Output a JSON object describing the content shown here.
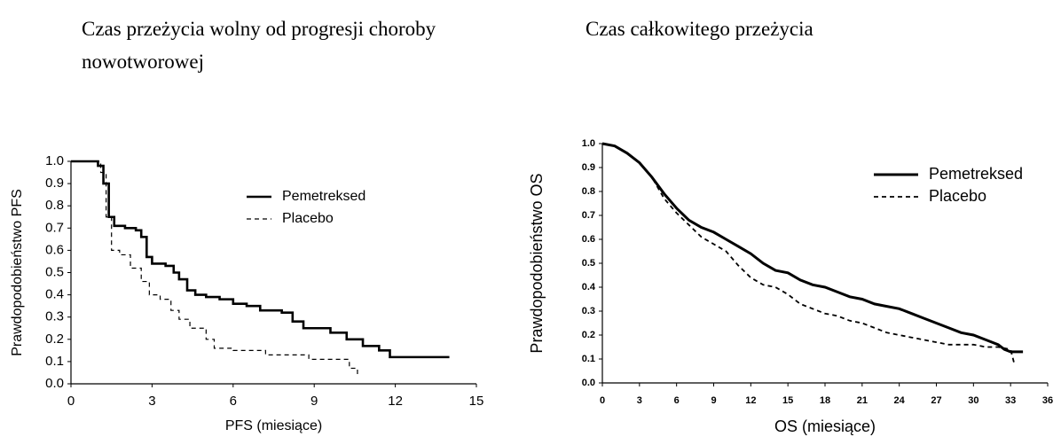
{
  "chart_data": [
    {
      "type": "line",
      "step": true,
      "title": "Czas przeżycia wolny od progresji choroby nowotworowej",
      "x_label": "PFS  (miesiące)",
      "y_label": "Prawdopodobieństwo PFS",
      "xlim": [
        0,
        15
      ],
      "xticks": [
        0,
        3,
        6,
        9,
        12,
        15
      ],
      "ylim": [
        0,
        1
      ],
      "yticks": [
        {
          "value": 0,
          "label": "0.0"
        },
        0.1,
        0.2,
        0.3,
        0.4,
        0.5,
        0.6,
        0.7,
        0.8,
        0.9,
        {
          "value": 1,
          "label": "1.0"
        }
      ],
      "legend": "upper right",
      "series": [
        {
          "name": "Pemetreksed",
          "color": "#000000",
          "style": "solid",
          "x": [
            0,
            0.8,
            1.0,
            1.2,
            1.4,
            1.6,
            2.0,
            2.4,
            2.6,
            2.8,
            3.0,
            3.5,
            3.8,
            4.0,
            4.3,
            4.6,
            5.0,
            5.5,
            6.0,
            6.5,
            7.0,
            7.8,
            8.2,
            8.6,
            9.2,
            9.6,
            10.2,
            10.8,
            11.4,
            11.8,
            14.0
          ],
          "values": [
            1.0,
            1.0,
            0.98,
            0.9,
            0.75,
            0.71,
            0.7,
            0.69,
            0.66,
            0.57,
            0.54,
            0.53,
            0.5,
            0.47,
            0.42,
            0.4,
            0.39,
            0.38,
            0.36,
            0.35,
            0.33,
            0.32,
            0.28,
            0.25,
            0.25,
            0.23,
            0.2,
            0.17,
            0.15,
            0.12,
            0.12
          ]
        },
        {
          "name": "Placebo",
          "color": "#000000",
          "style": "dashed",
          "x": [
            0,
            0.8,
            1.1,
            1.3,
            1.5,
            1.8,
            2.2,
            2.6,
            2.9,
            3.3,
            3.7,
            4.0,
            4.4,
            5.0,
            5.3,
            6.0,
            7.2,
            8.8,
            10.1,
            10.3,
            10.6,
            10.7
          ],
          "values": [
            1.0,
            1.0,
            0.95,
            0.75,
            0.6,
            0.58,
            0.52,
            0.46,
            0.4,
            0.38,
            0.33,
            0.29,
            0.25,
            0.2,
            0.16,
            0.15,
            0.13,
            0.11,
            0.11,
            0.07,
            0.04,
            0.04
          ]
        }
      ]
    },
    {
      "type": "line",
      "step": false,
      "title": "Czas całkowitego przeżycia",
      "x_label": "OS (miesiące)",
      "y_label": "Prawdopodobieństwo OS",
      "xlim": [
        0,
        36
      ],
      "xticks": [
        0,
        3,
        6,
        9,
        12,
        15,
        18,
        21,
        24,
        27,
        30,
        33,
        36
      ],
      "ylim": [
        0,
        1
      ],
      "yticks": [
        {
          "value": 0,
          "label": "0.0"
        },
        0.1,
        0.2,
        0.3,
        0.4,
        0.5,
        0.6,
        0.7,
        0.8,
        0.9,
        {
          "value": 1,
          "label": "1.0"
        }
      ],
      "legend": "upper right",
      "series": [
        {
          "name": "Pemetreksed",
          "color": "#000000",
          "style": "solid",
          "x": [
            0,
            1,
            2,
            3,
            4,
            5,
            6,
            7,
            8,
            9,
            10,
            11,
            12,
            13,
            14,
            15,
            16,
            17,
            18,
            19,
            20,
            21,
            22,
            23,
            24,
            25,
            26,
            27,
            28,
            29,
            30,
            31,
            32,
            32.5,
            33,
            34
          ],
          "values": [
            1.0,
            0.99,
            0.96,
            0.92,
            0.86,
            0.79,
            0.73,
            0.68,
            0.65,
            0.63,
            0.6,
            0.57,
            0.54,
            0.5,
            0.47,
            0.46,
            0.43,
            0.41,
            0.4,
            0.38,
            0.36,
            0.35,
            0.33,
            0.32,
            0.31,
            0.29,
            0.27,
            0.25,
            0.23,
            0.21,
            0.2,
            0.18,
            0.16,
            0.14,
            0.13,
            0.13
          ]
        },
        {
          "name": "Placebo",
          "color": "#000000",
          "style": "dashed",
          "x": [
            0,
            1,
            2,
            3,
            4,
            5,
            6,
            7,
            8,
            9,
            10,
            11,
            12,
            13,
            14,
            15,
            16,
            17,
            18,
            19,
            20,
            21,
            22,
            23,
            24,
            25,
            26,
            27,
            28,
            29,
            30,
            31,
            32,
            33,
            33.3
          ],
          "values": [
            1.0,
            0.99,
            0.96,
            0.92,
            0.86,
            0.77,
            0.71,
            0.66,
            0.61,
            0.58,
            0.55,
            0.49,
            0.44,
            0.41,
            0.4,
            0.37,
            0.33,
            0.31,
            0.29,
            0.28,
            0.26,
            0.25,
            0.23,
            0.21,
            0.2,
            0.19,
            0.18,
            0.17,
            0.16,
            0.16,
            0.16,
            0.15,
            0.15,
            0.14,
            0.08
          ]
        }
      ]
    }
  ]
}
